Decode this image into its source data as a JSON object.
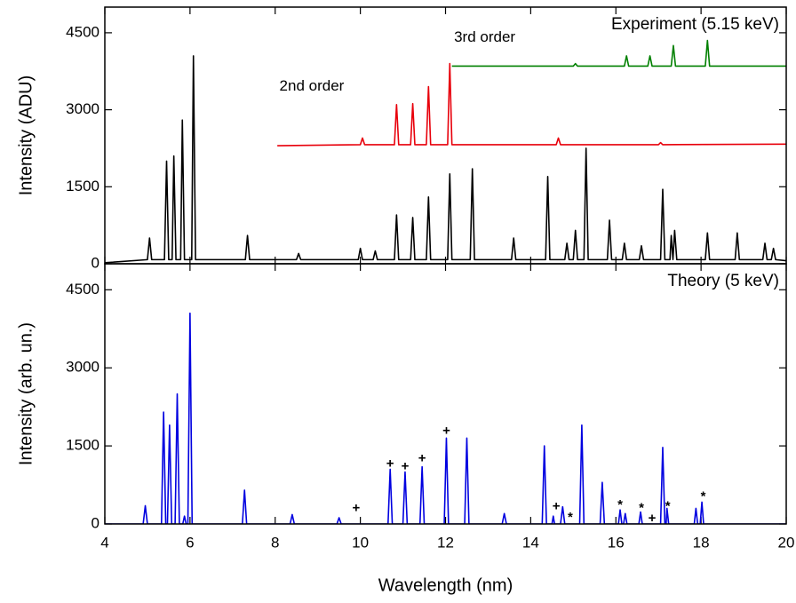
{
  "chart_data": [
    {
      "type": "line",
      "title": "Experiment (5.15 keV)",
      "y_label": "Intensity (ADU)",
      "xlim": [
        4,
        20
      ],
      "ylim": [
        0,
        5000
      ],
      "yticks": [
        0,
        1500,
        3000,
        4500
      ],
      "series": [
        {
          "color": "#000000",
          "x": [
            4,
            5.0,
            5.05,
            5.1,
            5.4,
            5.45,
            5.5,
            5.58,
            5.62,
            5.67,
            5.78,
            5.82,
            5.87,
            6.04,
            6.08,
            6.13,
            7.3,
            7.35,
            7.4,
            8.5,
            8.55,
            8.6,
            9.95,
            10.0,
            10.05,
            10.3,
            10.35,
            10.4,
            10.8,
            10.85,
            10.9,
            11.18,
            11.23,
            11.28,
            11.55,
            11.6,
            11.65,
            12.05,
            12.1,
            12.15,
            12.58,
            12.63,
            12.68,
            13.55,
            13.6,
            13.65,
            14.35,
            14.4,
            14.45,
            14.8,
            14.85,
            14.9,
            15.0,
            15.05,
            15.1,
            15.25,
            15.3,
            15.35,
            15.8,
            15.85,
            15.9,
            16.15,
            16.2,
            16.25,
            16.55,
            16.6,
            16.65,
            17.05,
            17.1,
            17.15,
            17.27,
            17.3,
            17.34,
            17.38,
            17.43,
            18.1,
            18.15,
            18.2,
            18.8,
            18.85,
            18.9,
            19.45,
            19.5,
            19.55,
            19.65,
            19.7,
            19.75,
            20
          ],
          "values": [
            20,
            80,
            500,
            80,
            80,
            2000,
            80,
            80,
            2100,
            80,
            80,
            2800,
            80,
            80,
            4050,
            80,
            80,
            550,
            80,
            80,
            200,
            80,
            80,
            300,
            80,
            80,
            250,
            80,
            80,
            950,
            80,
            80,
            900,
            80,
            80,
            1300,
            80,
            80,
            1750,
            80,
            80,
            1850,
            80,
            80,
            500,
            80,
            80,
            1700,
            80,
            80,
            400,
            80,
            80,
            650,
            80,
            80,
            2250,
            80,
            80,
            850,
            80,
            80,
            400,
            80,
            80,
            350,
            80,
            80,
            1450,
            80,
            80,
            550,
            80,
            650,
            80,
            80,
            600,
            80,
            80,
            600,
            80,
            80,
            400,
            80,
            80,
            300,
            80,
            60
          ]
        },
        {
          "color": "#e8000b",
          "x": [
            8.05,
            10.0,
            10.05,
            10.1,
            10.8,
            10.85,
            10.9,
            11.18,
            11.23,
            11.28,
            11.55,
            11.6,
            11.65,
            12.05,
            12.1,
            12.15,
            14.6,
            14.65,
            14.7,
            17.0,
            17.05,
            17.1,
            20
          ],
          "values": [
            2300,
            2320,
            2450,
            2320,
            2320,
            3100,
            2320,
            2320,
            3120,
            2320,
            2320,
            3450,
            2320,
            2320,
            3900,
            2320,
            2320,
            2450,
            2320,
            2320,
            2360,
            2320,
            2330
          ]
        },
        {
          "color": "#008000",
          "x": [
            12.15,
            15.0,
            15.05,
            15.1,
            16.2,
            16.25,
            16.3,
            16.75,
            16.8,
            16.85,
            17.3,
            17.35,
            17.4,
            18.1,
            18.15,
            18.2,
            20
          ],
          "values": [
            3850,
            3850,
            3900,
            3850,
            3850,
            4050,
            3850,
            3850,
            4050,
            3850,
            3850,
            4250,
            3850,
            3850,
            4350,
            3850,
            3850
          ]
        }
      ],
      "annotations": [
        {
          "text": "2nd order",
          "x": 8.1,
          "y": 3450
        },
        {
          "text": "3rd order",
          "x": 12.2,
          "y": 4400
        }
      ]
    },
    {
      "type": "line",
      "title": "Theory (5 keV)",
      "y_label": "Intensity (arb. un.)",
      "x_label": "Wavelength (nm)",
      "xlim": [
        4,
        20
      ],
      "xticks": [
        4,
        6,
        8,
        10,
        12,
        14,
        16,
        18,
        20
      ],
      "ylim": [
        0,
        5000
      ],
      "yticks": [
        0,
        1500,
        3000,
        4500
      ],
      "series": [
        {
          "color": "#0000e0",
          "x": [
            4,
            4.9,
            4.95,
            5.0,
            5.33,
            5.38,
            5.43,
            5.47,
            5.52,
            5.57,
            5.65,
            5.7,
            5.75,
            5.83,
            5.87,
            5.91,
            5.95,
            6.0,
            6.05,
            7.23,
            7.28,
            7.33,
            8.35,
            8.4,
            8.45,
            9.45,
            9.5,
            9.55,
            10.65,
            10.7,
            10.75,
            11.0,
            11.05,
            11.1,
            11.4,
            11.45,
            11.5,
            11.97,
            12.02,
            12.07,
            12.45,
            12.5,
            12.55,
            13.33,
            13.38,
            13.43,
            14.27,
            14.32,
            14.37,
            14.5,
            14.53,
            14.56,
            14.7,
            14.75,
            14.8,
            15.15,
            15.2,
            15.25,
            15.63,
            15.68,
            15.73,
            16.06,
            16.1,
            16.14,
            16.18,
            16.22,
            16.26,
            16.54,
            16.58,
            16.62,
            17.05,
            17.1,
            17.15,
            17.18,
            17.2,
            17.24,
            17.84,
            17.88,
            17.92,
            17.98,
            18.02,
            18.06,
            20
          ],
          "values": [
            0,
            0,
            350,
            0,
            0,
            2150,
            0,
            0,
            1900,
            0,
            0,
            2500,
            0,
            0,
            150,
            0,
            0,
            4050,
            0,
            0,
            650,
            0,
            0,
            180,
            0,
            0,
            120,
            0,
            0,
            1050,
            0,
            0,
            1000,
            0,
            0,
            1100,
            0,
            0,
            1650,
            0,
            0,
            1650,
            0,
            0,
            200,
            0,
            0,
            1500,
            0,
            0,
            150,
            0,
            0,
            330,
            0,
            0,
            1900,
            0,
            0,
            800,
            0,
            0,
            270,
            0,
            0,
            200,
            0,
            0,
            230,
            0,
            0,
            1470,
            0,
            0,
            300,
            0,
            0,
            300,
            0,
            0,
            420,
            0,
            0
          ]
        }
      ],
      "annotations": [
        {
          "text": "+",
          "x": 9.9,
          "y": 300
        },
        {
          "text": "+",
          "x": 10.7,
          "y": 1150
        },
        {
          "text": "+",
          "x": 11.05,
          "y": 1100
        },
        {
          "text": "+",
          "x": 11.45,
          "y": 1250
        },
        {
          "text": "+",
          "x": 12.02,
          "y": 1780
        },
        {
          "text": "+",
          "x": 14.6,
          "y": 330
        },
        {
          "text": "*",
          "x": 14.93,
          "y": 120
        },
        {
          "text": "*",
          "x": 16.1,
          "y": 360
        },
        {
          "text": "*",
          "x": 16.6,
          "y": 300
        },
        {
          "text": "+",
          "x": 16.85,
          "y": 100
        },
        {
          "text": "*",
          "x": 17.22,
          "y": 330
        },
        {
          "text": "*",
          "x": 18.05,
          "y": 520
        }
      ]
    }
  ]
}
